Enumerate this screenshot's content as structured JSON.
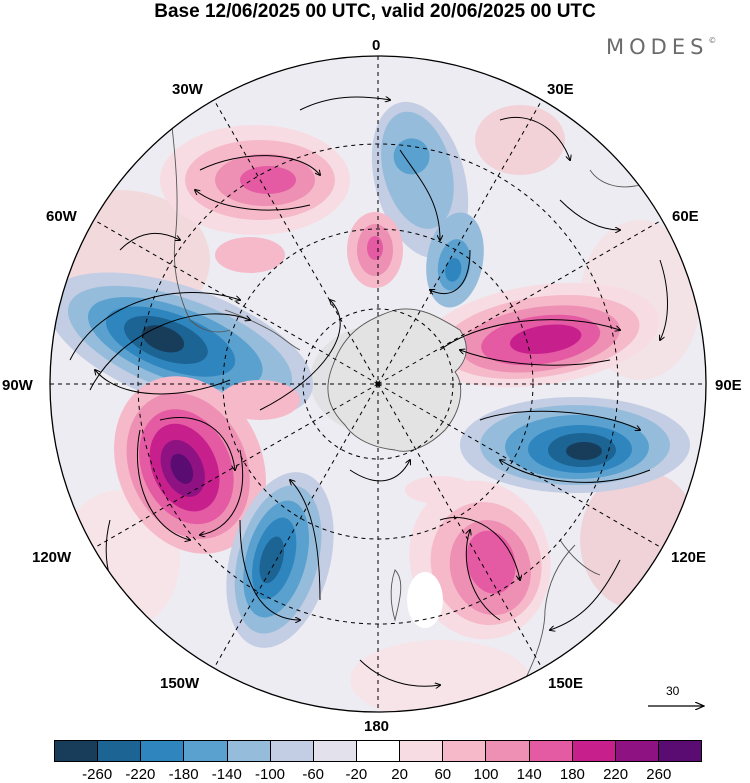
{
  "title": "Base 12/06/2025 00 UTC, valid 20/06/2025 00 UTC",
  "brand": {
    "name": "MODES",
    "mark": "©"
  },
  "longitude_labels": {
    "top": "0",
    "bottom": "180",
    "left": "90W",
    "right": "90E",
    "w30": "30W",
    "e30": "30E",
    "w60": "60W",
    "e60": "60E",
    "w120": "120W",
    "e120": "120E",
    "w150": "150W",
    "e150": "150E"
  },
  "wind_scale_label": "30",
  "colorbar": {
    "ticks": [
      "-260",
      "-220",
      "-180",
      "-140",
      "-100",
      "-60",
      "-20",
      "20",
      "60",
      "100",
      "140",
      "180",
      "220",
      "260"
    ],
    "colors": [
      "#173d5b",
      "#1c6494",
      "#2f86bf",
      "#5aa1cf",
      "#96bcdc",
      "#c3cde3",
      "#e3e1ec",
      "#ffffff",
      "#f7dde3",
      "#f5b9c9",
      "#ee8fb4",
      "#e45aa3",
      "#c71f8c",
      "#8f1283",
      "#5a0c72"
    ]
  },
  "map": {
    "projection": "south polar stereographic",
    "anomaly_centers": [
      {
        "sign": "negative",
        "value": -260
      },
      {
        "sign": "negative",
        "value": -220
      },
      {
        "sign": "negative",
        "value": -220
      },
      {
        "sign": "negative",
        "value": -140
      },
      {
        "sign": "positive",
        "value": 260
      },
      {
        "sign": "positive",
        "value": 180
      },
      {
        "sign": "positive",
        "value": 180
      },
      {
        "sign": "positive",
        "value": 140
      },
      {
        "sign": "positive",
        "value": 140
      },
      {
        "sign": "positive",
        "value": 60
      }
    ]
  }
}
